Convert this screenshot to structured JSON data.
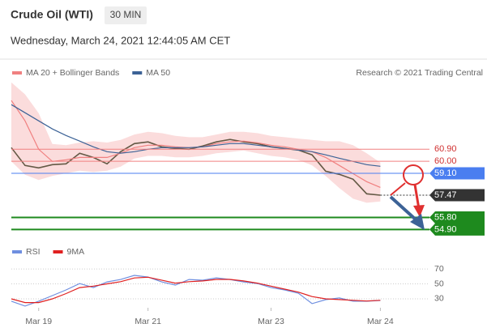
{
  "chart_data": [
    {
      "type": "line",
      "title": "Crude Oil (WTI)",
      "interval": "30 MIN",
      "subtitle": "Wednesday, March 24, 2021 12:44:05 AM CET",
      "credit": "Research © 2021 Trading Central",
      "xlim": [
        0,
        60
      ],
      "ylim": [
        54.2,
        66.0
      ],
      "x": [
        0,
        2,
        4,
        6,
        8,
        10,
        12,
        14,
        16,
        18,
        20,
        22,
        24,
        26,
        28,
        30,
        32,
        34,
        36,
        38,
        40,
        42,
        44,
        46,
        48,
        50,
        52,
        54
      ],
      "series": [
        {
          "color": "#2f4a2f",
          "values": [
            61.02,
            59.69,
            59.51,
            59.75,
            59.81,
            60.6,
            60.29,
            59.81,
            60.72,
            61.32,
            61.45,
            61.08,
            60.96,
            60.9,
            61.14,
            61.45,
            61.63,
            61.45,
            61.32,
            61.08,
            60.96,
            60.84,
            60.48,
            59.26,
            59.02,
            58.66,
            57.57,
            57.47
          ]
        },
        {
          "name": "MA 20 + Bollinger Bands",
          "color": "#f08080",
          "values": [
            64.54,
            63.02,
            60.9,
            59.99,
            60.11,
            60.29,
            60.29,
            60.29,
            60.6,
            61.02,
            61.2,
            61.2,
            61.08,
            61.02,
            61.08,
            61.32,
            61.45,
            61.51,
            61.38,
            61.2,
            61.08,
            60.9,
            60.72,
            60.29,
            59.69,
            59.08,
            58.48,
            58.05
          ],
          "upper": [
            65.9,
            65.0,
            63.6,
            61.3,
            61.2,
            61.4,
            61.5,
            61.4,
            61.6,
            62.0,
            62.2,
            62.1,
            61.9,
            61.8,
            61.8,
            62.0,
            62.2,
            62.2,
            62.1,
            61.9,
            61.8,
            61.7,
            61.6,
            61.5,
            61.5,
            61.2,
            60.6,
            59.9
          ],
          "lower": [
            60.0,
            59.0,
            58.6,
            58.9,
            59.1,
            59.3,
            59.2,
            59.3,
            59.6,
            60.2,
            60.4,
            60.4,
            60.3,
            60.3,
            60.4,
            60.6,
            60.7,
            60.8,
            60.6,
            60.4,
            60.3,
            60.1,
            59.7,
            58.9,
            58.0,
            57.2,
            56.9,
            57.0
          ]
        },
        {
          "name": "MA 50",
          "color": "#3c6296",
          "values": [
            64.23,
            63.63,
            63.02,
            62.42,
            61.93,
            61.51,
            61.08,
            60.72,
            60.6,
            60.72,
            60.9,
            61.02,
            61.02,
            61.02,
            61.08,
            61.2,
            61.32,
            61.32,
            61.2,
            61.08,
            60.96,
            60.84,
            60.72,
            60.48,
            60.23,
            59.99,
            59.75,
            59.63
          ]
        }
      ],
      "levels": [
        {
          "value": 60.9,
          "label": "60.90",
          "color": "#f08080",
          "badge": false,
          "dash": false
        },
        {
          "value": 60.0,
          "label": "60.00",
          "color": "#f08080",
          "badge": false,
          "dash": false
        },
        {
          "value": 59.1,
          "label": "59.10",
          "color": "#4a7ef0",
          "badge": true,
          "dash": false
        },
        {
          "value": 57.47,
          "label": "57.47",
          "color": "#333333",
          "badge": true,
          "dash": true
        },
        {
          "value": 55.8,
          "label": "55.80",
          "color": "#1e8a1e",
          "badge": true,
          "dash": false
        },
        {
          "value": 54.9,
          "label": "54.90",
          "color": "#1e8a1e",
          "badge": true,
          "dash": false
        }
      ]
    },
    {
      "type": "line",
      "xlim": [
        0,
        60
      ],
      "ylim": [
        18,
        81
      ],
      "yticks": [
        30,
        50,
        70
      ],
      "grid": true,
      "xticks": [
        {
          "value": 4,
          "label": "Mar 19"
        },
        {
          "value": 20,
          "label": "Mar 21"
        },
        {
          "value": 38,
          "label": "Mar 23"
        },
        {
          "value": 54,
          "label": "Mar 24"
        }
      ],
      "x": [
        0,
        2,
        4,
        6,
        8,
        10,
        12,
        14,
        16,
        18,
        20,
        22,
        24,
        26,
        28,
        30,
        32,
        34,
        36,
        38,
        40,
        42,
        44,
        46,
        48,
        50,
        52,
        54
      ],
      "series": [
        {
          "name": "RSI",
          "color": "#6f8fe0",
          "values": [
            26.8,
            20.3,
            26.8,
            34.3,
            41.9,
            50.5,
            45.1,
            52.7,
            55.9,
            61.4,
            59.2,
            52.7,
            48.4,
            55.9,
            54.9,
            58.1,
            55.9,
            52.7,
            50.5,
            45.1,
            41.9,
            37.6,
            23.5,
            28.9,
            31.1,
            26.8,
            26.8,
            27.8
          ]
        },
        {
          "name": "9MA",
          "color": "#e02020",
          "values": [
            30,
            25,
            25,
            30,
            37,
            45,
            47,
            50,
            53,
            58,
            59,
            55,
            51,
            53,
            54,
            56,
            56,
            54,
            51,
            47,
            43,
            39,
            33,
            30,
            29,
            28,
            27,
            28
          ]
        }
      ]
    }
  ]
}
